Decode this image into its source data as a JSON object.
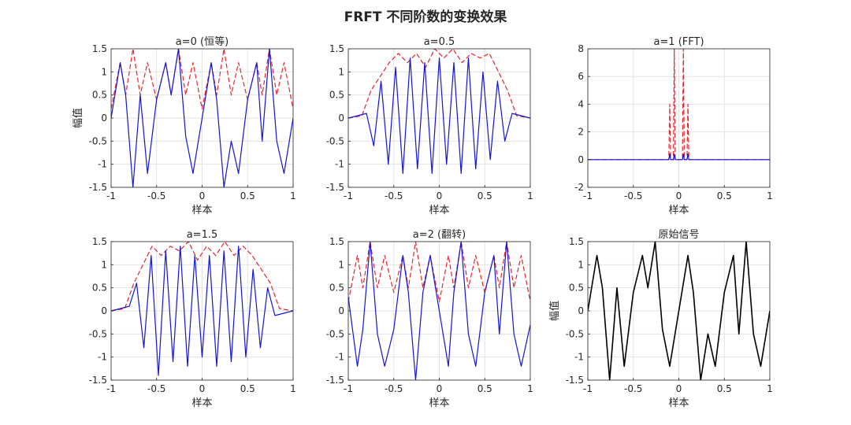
{
  "figure": {
    "title": "FRFT 不同阶数的变换效果"
  },
  "colors": {
    "magnitude": "#e8242a",
    "real": "#1414d8",
    "signal": "#000000",
    "grid": "#e3e3e3",
    "axis": "#262626"
  },
  "chart_data": [
    {
      "type": "line",
      "title": "a=0 (恒等)",
      "xlabel": "样本",
      "ylabel": "幅值",
      "xlim": [
        -1,
        1
      ],
      "ylim": [
        -1.5,
        1.5
      ],
      "xticks": [
        -1,
        -0.5,
        0,
        0.5,
        1
      ],
      "yticks": [
        -1.5,
        -1,
        -0.5,
        0,
        0.5,
        1,
        1.5
      ],
      "xtick_labels": [
        "-1",
        "-0.5",
        "0",
        "0.5",
        "1"
      ],
      "ytick_labels": [
        "-1.5",
        "-1",
        "-0.5",
        "0",
        "0.5",
        "1",
        "1.5"
      ],
      "grid": true,
      "series": [
        {
          "kind": "magnitude",
          "style": "dashed",
          "color": "#e8242a",
          "x": [
            -1,
            -0.9,
            -0.84,
            -0.76,
            -0.68,
            -0.6,
            -0.5,
            -0.4,
            -0.34,
            -0.26,
            -0.18,
            -0.1,
            0,
            0.1,
            0.16,
            0.24,
            0.32,
            0.4,
            0.5,
            0.6,
            0.66,
            0.74,
            0.82,
            0.9,
            1
          ],
          "y": [
            0.2,
            1.2,
            0.5,
            1.5,
            0.5,
            1.2,
            0.4,
            1.2,
            0.5,
            1.5,
            0.5,
            1.2,
            0.2,
            1.2,
            0.5,
            1.5,
            0.5,
            1.2,
            0.4,
            1.2,
            0.5,
            1.5,
            0.5,
            1.2,
            0.2
          ]
        },
        {
          "kind": "real",
          "style": "solid",
          "color": "#1414d8",
          "x": [
            -1,
            -0.9,
            -0.84,
            -0.76,
            -0.68,
            -0.6,
            -0.5,
            -0.4,
            -0.34,
            -0.26,
            -0.18,
            -0.1,
            0,
            0.1,
            0.16,
            0.24,
            0.32,
            0.4,
            0.5,
            0.6,
            0.66,
            0.74,
            0.82,
            0.9,
            1
          ],
          "y": [
            0,
            1.2,
            0.5,
            -1.5,
            0.5,
            -1.2,
            0.4,
            1.2,
            0.5,
            1.5,
            -0.4,
            -1.2,
            0,
            1.2,
            0.4,
            -1.5,
            -0.5,
            -1.2,
            0.4,
            1.2,
            -0.5,
            1.5,
            -0.5,
            -1.2,
            0
          ]
        }
      ]
    },
    {
      "type": "line",
      "title": "a=0.5",
      "xlabel": "",
      "ylabel": "",
      "xlim": [
        -1,
        1
      ],
      "ylim": [
        -1.5,
        1.5
      ],
      "xticks": [
        -1,
        -0.5,
        0,
        0.5,
        1
      ],
      "yticks": [
        -1.5,
        -1,
        -0.5,
        0,
        0.5,
        1,
        1.5
      ],
      "xtick_labels": [
        "-1",
        "-0.5",
        "0",
        "0.5",
        "1"
      ],
      "ytick_labels": [
        "-1.5",
        "-1",
        "-0.5",
        "0",
        "0.5",
        "1",
        "1.5"
      ],
      "grid": true,
      "series": [
        {
          "kind": "magnitude",
          "style": "dashed",
          "color": "#e8242a",
          "x": [
            -1,
            -0.85,
            -0.75,
            -0.65,
            -0.55,
            -0.45,
            -0.35,
            -0.25,
            -0.15,
            -0.05,
            0.05,
            0.15,
            0.25,
            0.35,
            0.45,
            0.55,
            0.65,
            0.75,
            0.85,
            1
          ],
          "y": [
            0,
            0.05,
            0.6,
            0.9,
            1.2,
            1.4,
            1.2,
            1.4,
            1.1,
            1.5,
            1.3,
            1.5,
            1.2,
            1.4,
            1.3,
            1.4,
            1.0,
            0.6,
            0.05,
            0
          ]
        },
        {
          "kind": "real",
          "style": "solid",
          "color": "#1414d8",
          "x": [
            -1,
            -0.8,
            -0.72,
            -0.64,
            -0.56,
            -0.48,
            -0.4,
            -0.32,
            -0.24,
            -0.16,
            -0.08,
            0,
            0.08,
            0.16,
            0.24,
            0.32,
            0.4,
            0.48,
            0.56,
            0.64,
            0.72,
            0.8,
            1
          ],
          "y": [
            0,
            0.1,
            -0.6,
            0.8,
            -1.0,
            1.1,
            -1.2,
            1.3,
            -1.1,
            1.2,
            -1.2,
            1.3,
            -1.0,
            1.2,
            -1.2,
            1.3,
            -1.1,
            1.0,
            -0.9,
            0.8,
            -0.5,
            0.1,
            0
          ]
        }
      ]
    },
    {
      "type": "line",
      "title": "a=1 (FFT)",
      "xlabel": "",
      "ylabel": "",
      "xlim": [
        -1,
        1
      ],
      "ylim": [
        -2,
        8
      ],
      "xticks": [
        -1,
        -0.5,
        0,
        0.5,
        1
      ],
      "yticks": [
        -2,
        0,
        2,
        4,
        6,
        8
      ],
      "xtick_labels": [
        "-1",
        "-0.5",
        "0",
        "0.5",
        "1"
      ],
      "ytick_labels": [
        "-2",
        "0",
        "2",
        "4",
        "6",
        "8"
      ],
      "grid": true,
      "series": [
        {
          "kind": "magnitude",
          "style": "dashed",
          "color": "#e8242a",
          "x": [
            -1,
            -0.11,
            -0.1,
            -0.09,
            -0.06,
            -0.05,
            -0.04,
            0.04,
            0.05,
            0.06,
            0.09,
            0.1,
            0.11,
            1
          ],
          "y": [
            0,
            0,
            4.0,
            0,
            0,
            8.0,
            0,
            0,
            8.0,
            0,
            0,
            4.0,
            0,
            0
          ]
        },
        {
          "kind": "real",
          "style": "solid",
          "color": "#1414d8",
          "x": [
            -1,
            -0.11,
            -0.1,
            -0.09,
            -0.06,
            -0.05,
            -0.04,
            0.04,
            0.05,
            0.06,
            0.09,
            0.1,
            0.11,
            1
          ],
          "y": [
            0,
            0,
            0.4,
            0,
            0,
            0.4,
            0,
            0,
            0.4,
            0,
            0,
            0.4,
            0,
            0
          ]
        }
      ]
    },
    {
      "type": "line",
      "title": "a=1.5",
      "xlabel": "",
      "ylabel": "",
      "xlim": [
        -1,
        1
      ],
      "ylim": [
        -1.5,
        1.5
      ],
      "xticks": [
        -1,
        -0.5,
        0,
        0.5,
        1
      ],
      "yticks": [
        -1.5,
        -1,
        -0.5,
        0,
        0.5,
        1,
        1.5
      ],
      "xtick_labels": [
        "-1",
        "-0.5",
        "0",
        "0.5",
        "1"
      ],
      "ytick_labels": [
        "-1.5",
        "-1",
        "-0.5",
        "0",
        "0.5",
        "1",
        "1.5"
      ],
      "grid": true,
      "series": [
        {
          "kind": "magnitude",
          "style": "dashed",
          "color": "#e8242a",
          "x": [
            -1,
            -0.85,
            -0.75,
            -0.65,
            -0.55,
            -0.45,
            -0.35,
            -0.25,
            -0.15,
            -0.05,
            0.05,
            0.15,
            0.25,
            0.35,
            0.45,
            0.55,
            0.65,
            0.75,
            0.85,
            1
          ],
          "y": [
            0,
            0.05,
            0.6,
            1.0,
            1.4,
            1.2,
            1.4,
            1.3,
            1.5,
            1.1,
            1.4,
            1.2,
            1.5,
            1.2,
            1.4,
            1.2,
            0.9,
            0.6,
            0.05,
            0
          ]
        },
        {
          "kind": "real",
          "style": "solid",
          "color": "#1414d8",
          "x": [
            -1,
            -0.8,
            -0.72,
            -0.64,
            -0.56,
            -0.48,
            -0.4,
            -0.32,
            -0.24,
            -0.16,
            -0.08,
            0,
            0.08,
            0.16,
            0.24,
            0.32,
            0.4,
            0.48,
            0.56,
            0.64,
            0.72,
            0.8,
            1
          ],
          "y": [
            0,
            0.1,
            0.6,
            -0.8,
            1.2,
            -1.4,
            1.3,
            -1.1,
            1.4,
            -1.2,
            1.2,
            -1.0,
            1.2,
            -1.2,
            1.3,
            -1.1,
            1.4,
            -1.0,
            0.9,
            -0.8,
            0.5,
            -0.1,
            0
          ]
        }
      ]
    },
    {
      "type": "line",
      "title": "a=2 (翻转)",
      "xlabel": "",
      "ylabel": "",
      "xlim": [
        -1,
        1
      ],
      "ylim": [
        -1.5,
        1.5
      ],
      "xticks": [
        -1,
        -0.5,
        0,
        0.5,
        1
      ],
      "yticks": [
        -1.5,
        -1,
        -0.5,
        0,
        0.5,
        1,
        1.5
      ],
      "xtick_labels": [
        "-1",
        "-0.5",
        "0",
        "0.5",
        "1"
      ],
      "ytick_labels": [
        "-1.5",
        "-1",
        "-0.5",
        "0",
        "0.5",
        "1",
        "1.5"
      ],
      "grid": true,
      "series": [
        {
          "kind": "magnitude",
          "style": "dashed",
          "color": "#e8242a",
          "x": [
            -1,
            -0.9,
            -0.84,
            -0.76,
            -0.68,
            -0.6,
            -0.5,
            -0.4,
            -0.34,
            -0.26,
            -0.18,
            -0.1,
            0,
            0.1,
            0.16,
            0.24,
            0.32,
            0.4,
            0.5,
            0.6,
            0.66,
            0.74,
            0.82,
            0.9,
            1
          ],
          "y": [
            0.2,
            1.2,
            0.5,
            1.5,
            0.5,
            1.2,
            0.4,
            1.2,
            0.5,
            1.5,
            0.5,
            1.2,
            0.2,
            1.2,
            0.5,
            1.5,
            0.5,
            1.2,
            0.4,
            1.2,
            0.5,
            1.5,
            0.5,
            1.2,
            0.2
          ]
        },
        {
          "kind": "real",
          "style": "solid",
          "color": "#1414d8",
          "x": [
            -1,
            -0.9,
            -0.84,
            -0.76,
            -0.68,
            -0.6,
            -0.5,
            -0.4,
            -0.34,
            -0.26,
            -0.18,
            -0.1,
            0,
            0.1,
            0.16,
            0.24,
            0.32,
            0.4,
            0.5,
            0.6,
            0.66,
            0.74,
            0.82,
            0.9,
            1
          ],
          "y": [
            0.3,
            -1.2,
            -0.4,
            1.5,
            -0.5,
            -1.2,
            -0.4,
            1.2,
            0.4,
            -1.5,
            0.4,
            1.2,
            0,
            -1.2,
            0.4,
            1.5,
            -0.5,
            -1.2,
            0.4,
            1.2,
            -0.5,
            1.5,
            -0.5,
            -1.2,
            -0.3
          ]
        }
      ]
    },
    {
      "type": "line",
      "title": "原始信号",
      "xlabel": "样本",
      "ylabel": "幅值",
      "xlim": [
        -1,
        1
      ],
      "ylim": [
        -1.5,
        1.5
      ],
      "xticks": [
        -1,
        -0.5,
        0,
        0.5,
        1
      ],
      "yticks": [
        -1.5,
        -1,
        -0.5,
        0,
        0.5,
        1,
        1.5
      ],
      "xtick_labels": [
        "-1",
        "-0.5",
        "0",
        "0.5",
        "1"
      ],
      "ytick_labels": [
        "-1.5",
        "-1",
        "-0.5",
        "0",
        "0.5",
        "1",
        "1.5"
      ],
      "grid": true,
      "series": [
        {
          "kind": "signal",
          "style": "solid",
          "color": "#000000",
          "x": [
            -1,
            -0.9,
            -0.84,
            -0.76,
            -0.68,
            -0.6,
            -0.5,
            -0.4,
            -0.34,
            -0.26,
            -0.18,
            -0.1,
            0,
            0.1,
            0.16,
            0.24,
            0.32,
            0.4,
            0.5,
            0.6,
            0.66,
            0.74,
            0.82,
            0.9,
            1
          ],
          "y": [
            0,
            1.2,
            0.5,
            -1.5,
            0.5,
            -1.2,
            0.4,
            1.2,
            0.5,
            1.5,
            -0.4,
            -1.2,
            0,
            1.2,
            0.4,
            -1.5,
            -0.5,
            -1.2,
            0.4,
            1.2,
            -0.5,
            1.5,
            -0.5,
            -1.2,
            0
          ]
        }
      ]
    }
  ]
}
